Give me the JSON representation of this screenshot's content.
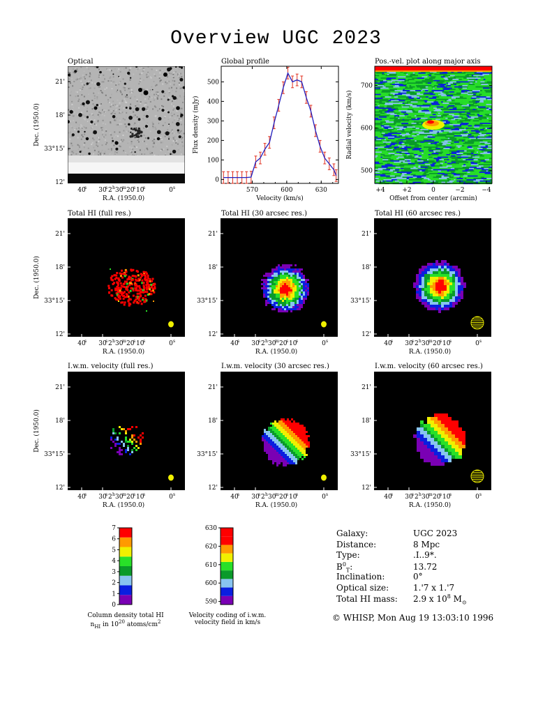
{
  "page": {
    "title": "Overview UGC 2023"
  },
  "labels": {
    "ra_axis": "R.A. (1950.0)",
    "dec_axis": "Dec. (1950.0)",
    "ra_ticks": [
      "40s",
      "30s",
      "2h30m20s",
      "10s",
      "0s"
    ],
    "dec_ticks": [
      "21'",
      "18'",
      "33°15'",
      "12'"
    ]
  },
  "panels": {
    "optical": "Optical",
    "global": "Global profile",
    "pv": "Pos.-vel. plot along major axis",
    "hi_full": "Total HI (full res.)",
    "hi_30": "Total HI (30 arcsec res.)",
    "hi_60": "Total HI (60 arcsec res.)",
    "vel_full": "I.w.m. velocity (full res.)",
    "vel_30": "I.w.m. velocity (30 arcsec res.)",
    "vel_60": "I.w.m. velocity (60 arcsec res.)"
  },
  "chart_data": [
    {
      "type": "line",
      "title": "Global profile",
      "xlabel": "Velocity (km/s)",
      "ylabel": "Flux density (mJy)",
      "xlim": [
        543,
        645
      ],
      "ylim": [
        -20,
        580
      ],
      "xticks": [
        570,
        600,
        630
      ],
      "yticks": [
        0,
        100,
        200,
        300,
        400,
        500
      ],
      "x": [
        545,
        549,
        553,
        557,
        561,
        565,
        569,
        573,
        577,
        581,
        585,
        589,
        593,
        597,
        601,
        605,
        609,
        613,
        617,
        621,
        625,
        629,
        633,
        637,
        641,
        643
      ],
      "y": [
        10,
        10,
        10,
        10,
        10,
        10,
        12,
        90,
        110,
        155,
        190,
        290,
        380,
        470,
        545,
        500,
        510,
        500,
        420,
        350,
        250,
        170,
        110,
        80,
        50,
        20
      ],
      "errors": [
        30,
        30,
        30,
        30,
        30,
        30,
        30,
        30,
        30,
        30,
        30,
        30,
        30,
        30,
        30,
        30,
        30,
        30,
        30,
        30,
        30,
        30,
        30,
        30,
        30,
        30
      ]
    },
    {
      "type": "heatmap",
      "title": "Pos.-vel. plot along major axis",
      "xlabel": "Offset from center (arcmin)",
      "ylabel": "Radial velocity (km/s)",
      "xticks": [
        "+4",
        "+2",
        "0",
        "−2",
        "−4"
      ],
      "yticks": [
        500,
        600,
        700
      ]
    },
    {
      "type": "bar",
      "title": "Column density total HI",
      "caption_line1": "Column density total HI",
      "caption_line2": "n",
      "caption_sub": "HI",
      "caption_rest": " in 10",
      "caption_sup": "20",
      "caption_end": " atoms/cm",
      "caption_sup2": "2",
      "ticks": [
        "0",
        "1",
        "2",
        "3",
        "4",
        "5",
        "6",
        "7"
      ],
      "colors": [
        "#7a00b4",
        "#0a1ee0",
        "#88c4f0",
        "#0a9a2a",
        "#28e028",
        "#f0f000",
        "#ff9a00",
        "#ff0000"
      ]
    },
    {
      "type": "bar",
      "title": "Velocity coding of i.w.m. velocity field in km/s",
      "caption_line1": "Velocity coding of i.w.m.",
      "caption_line2": "velocity field in km/s",
      "ticks": [
        "590",
        "600",
        "610",
        "620",
        "630"
      ],
      "colors": [
        "#7a00b4",
        "#0a1ee0",
        "#88c4f0",
        "#0a9a2a",
        "#28e028",
        "#f0f000",
        "#ff9a00",
        "#ff0000",
        "#ff0000"
      ]
    }
  ],
  "info": {
    "rows": [
      {
        "label": "Galaxy:",
        "value": "UGC 2023"
      },
      {
        "label": "Distance:",
        "value": "8 Mpc"
      },
      {
        "label": "Type:",
        "value": ".I..9*."
      },
      {
        "label": "B",
        "label_sup": "0",
        "label_sub": "T",
        "label_end": ":",
        "value": "13.72"
      },
      {
        "label": "Inclination:",
        "value": "0°"
      },
      {
        "label": "Optical size:",
        "value": "1.'7 x 1.'7"
      },
      {
        "label": "Total HI mass:",
        "value": "2.9 x 10",
        "value_sup": "8",
        "value_end": " M",
        "value_sub": "⊙"
      }
    ],
    "footer": "© WHISP, Mon Aug 19 13:03:10 1996"
  },
  "colors": {
    "purple": "#7a00b4",
    "blue": "#0a1ee0",
    "lightblue": "#88c4f0",
    "darkgreen": "#0a9a2a",
    "green": "#28e028",
    "yellow": "#f0f000",
    "orange": "#ff9a00",
    "red": "#ff0000",
    "beam": "#f0f000"
  }
}
